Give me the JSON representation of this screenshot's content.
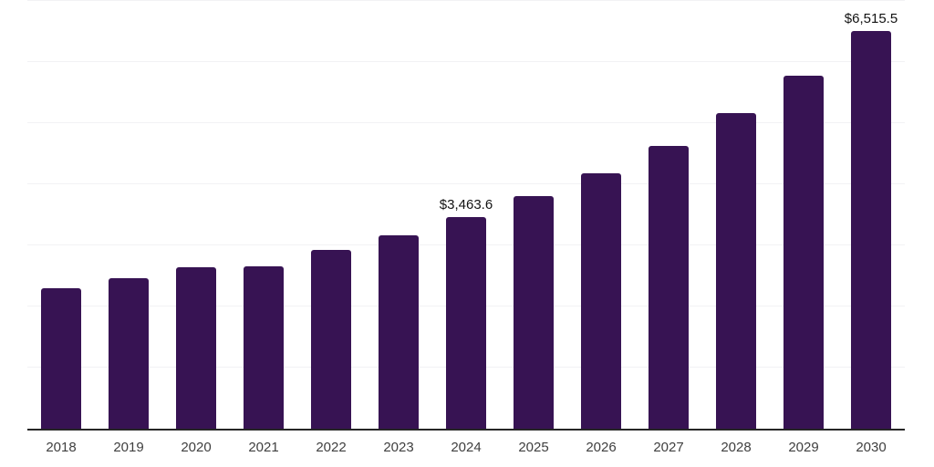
{
  "page": {
    "background": "#FFFFFF"
  },
  "chart_data": {
    "type": "bar",
    "title": "",
    "xlabel": "",
    "ylabel": "",
    "categories": [
      "2018",
      "2019",
      "2020",
      "2021",
      "2022",
      "2023",
      "2024",
      "2025",
      "2026",
      "2027",
      "2028",
      "2029",
      "2030"
    ],
    "values": [
      2305,
      2460,
      2640,
      2655,
      2925,
      3160,
      3463.6,
      3805,
      4180,
      4625,
      5160,
      5775,
      6515.5
    ],
    "data_labels": [
      {
        "category": "2024",
        "text": "$3,463.6"
      },
      {
        "category": "2030",
        "text": "$6,515.5"
      }
    ],
    "ylim": [
      0,
      7000
    ],
    "gridlines": [
      1000,
      2000,
      3000,
      4000,
      5000,
      6000,
      7000
    ],
    "grid": true,
    "legend": "none",
    "y_axis_tick_labels_visible": false,
    "colors": {
      "bar": "#371353",
      "gridline": "#F2F2F4",
      "axis_line": "#262626",
      "tick_label": "#3F3F3F",
      "data_label": "#121212",
      "background": "#FFFFFF"
    }
  }
}
